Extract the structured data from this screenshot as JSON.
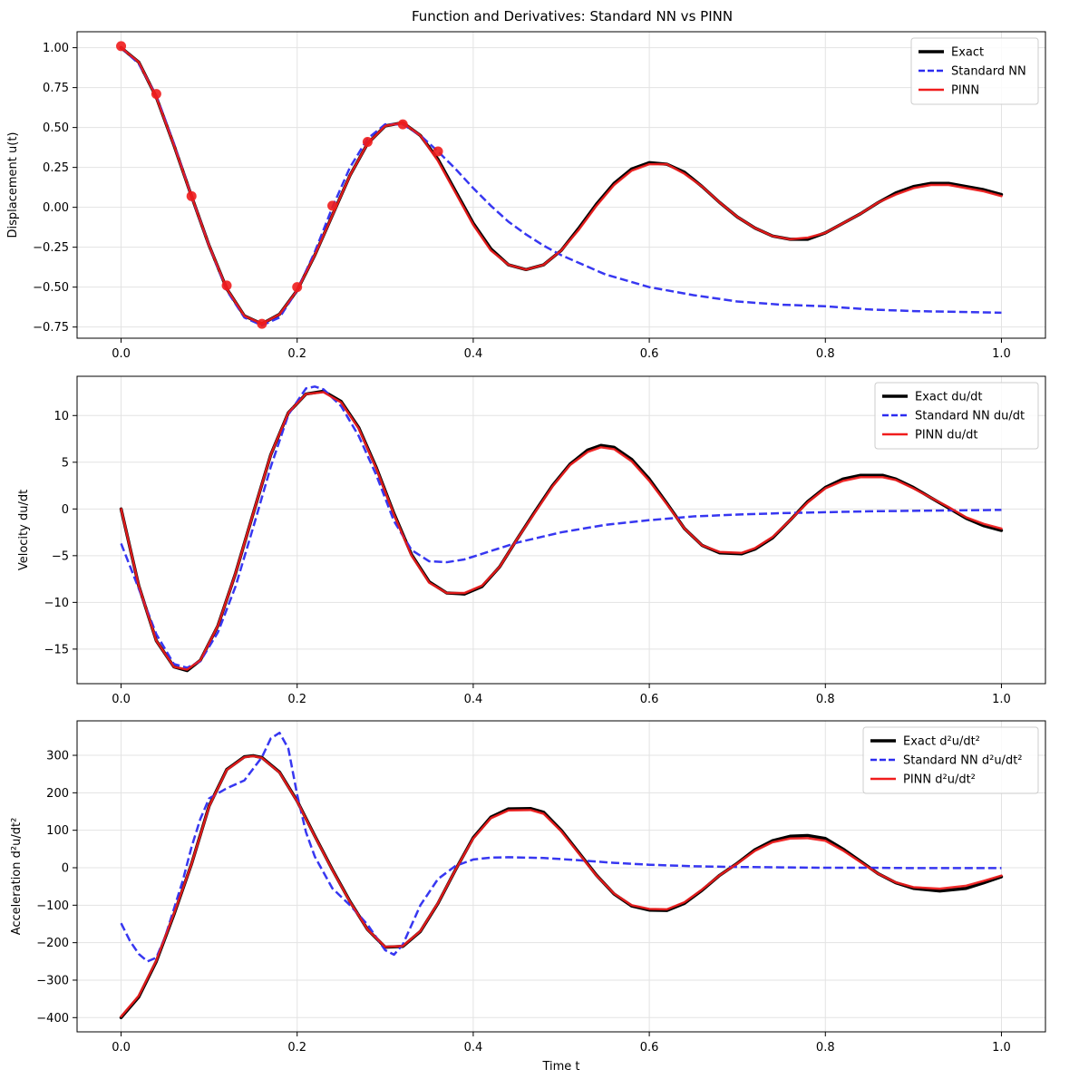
{
  "chart_data": [
    {
      "type": "line",
      "title": "Function and Derivatives: Standard NN vs PINN",
      "xlabel": "",
      "ylabel": "Displacement u(t)",
      "xlim": [
        -0.05,
        1.05
      ],
      "ylim": [
        -0.82,
        1.1
      ],
      "xticks": [
        0.0,
        0.2,
        0.4,
        0.6,
        0.8,
        1.0
      ],
      "xtick_labels": [
        "0.0",
        "0.2",
        "0.4",
        "0.6",
        "0.8",
        "1.0"
      ],
      "yticks": [
        -0.75,
        -0.5,
        -0.25,
        0.0,
        0.25,
        0.5,
        0.75,
        1.0
      ],
      "ytick_labels": [
        "−0.75",
        "−0.50",
        "−0.25",
        "0.00",
        "0.25",
        "0.50",
        "0.75",
        "1.00"
      ],
      "grid": true,
      "legend_position": "top-right",
      "series": [
        {
          "name": "Exact",
          "color": "#000000",
          "style": "solid",
          "width": 3.5,
          "x": [
            0,
            0.02,
            0.04,
            0.06,
            0.08,
            0.1,
            0.12,
            0.14,
            0.16,
            0.18,
            0.2,
            0.22,
            0.24,
            0.26,
            0.28,
            0.3,
            0.32,
            0.34,
            0.36,
            0.38,
            0.4,
            0.42,
            0.44,
            0.46,
            0.48,
            0.5,
            0.52,
            0.54,
            0.56,
            0.58,
            0.6,
            0.62,
            0.64,
            0.66,
            0.68,
            0.7,
            0.72,
            0.74,
            0.76,
            0.78,
            0.8,
            0.82,
            0.84,
            0.86,
            0.88,
            0.9,
            0.92,
            0.94,
            0.96,
            0.98,
            1.0
          ],
          "values": [
            1.0,
            0.91,
            0.69,
            0.39,
            0.07,
            -0.24,
            -0.51,
            -0.68,
            -0.73,
            -0.67,
            -0.52,
            -0.3,
            -0.05,
            0.2,
            0.4,
            0.51,
            0.53,
            0.45,
            0.3,
            0.1,
            -0.1,
            -0.26,
            -0.36,
            -0.39,
            -0.36,
            -0.27,
            -0.13,
            0.02,
            0.15,
            0.24,
            0.28,
            0.27,
            0.22,
            0.13,
            0.03,
            -0.06,
            -0.13,
            -0.18,
            -0.2,
            -0.2,
            -0.16,
            -0.1,
            -0.04,
            0.03,
            0.09,
            0.13,
            0.15,
            0.15,
            0.13,
            0.11,
            0.08
          ]
        },
        {
          "name": "Standard NN",
          "color": "#2c2cf0",
          "style": "dashed",
          "width": 2.5,
          "x": [
            0,
            0.02,
            0.04,
            0.06,
            0.08,
            0.1,
            0.12,
            0.14,
            0.16,
            0.18,
            0.2,
            0.22,
            0.24,
            0.26,
            0.28,
            0.3,
            0.32,
            0.34,
            0.36,
            0.38,
            0.4,
            0.42,
            0.44,
            0.46,
            0.48,
            0.5,
            0.55,
            0.6,
            0.65,
            0.7,
            0.75,
            0.8,
            0.85,
            0.9,
            0.95,
            1.0
          ],
          "values": [
            1.0,
            0.9,
            0.7,
            0.4,
            0.07,
            -0.24,
            -0.52,
            -0.69,
            -0.74,
            -0.69,
            -0.52,
            -0.28,
            0.0,
            0.25,
            0.43,
            0.52,
            0.52,
            0.45,
            0.35,
            0.24,
            0.12,
            0.01,
            -0.09,
            -0.17,
            -0.24,
            -0.3,
            -0.42,
            -0.5,
            -0.55,
            -0.59,
            -0.61,
            -0.62,
            -0.64,
            -0.65,
            -0.655,
            -0.66
          ]
        },
        {
          "name": "PINN",
          "color": "#f01c1c",
          "style": "solid",
          "width": 2.5,
          "x": [
            0,
            0.02,
            0.04,
            0.06,
            0.08,
            0.1,
            0.12,
            0.14,
            0.16,
            0.18,
            0.2,
            0.22,
            0.24,
            0.26,
            0.28,
            0.3,
            0.32,
            0.34,
            0.36,
            0.38,
            0.4,
            0.42,
            0.44,
            0.46,
            0.48,
            0.5,
            0.52,
            0.54,
            0.56,
            0.58,
            0.6,
            0.62,
            0.64,
            0.66,
            0.68,
            0.7,
            0.72,
            0.74,
            0.76,
            0.78,
            0.8,
            0.82,
            0.84,
            0.86,
            0.88,
            0.9,
            0.92,
            0.94,
            0.96,
            0.98,
            1.0
          ],
          "values": [
            1.0,
            0.91,
            0.69,
            0.39,
            0.07,
            -0.24,
            -0.51,
            -0.68,
            -0.73,
            -0.67,
            -0.52,
            -0.3,
            -0.05,
            0.2,
            0.4,
            0.51,
            0.53,
            0.45,
            0.29,
            0.09,
            -0.11,
            -0.27,
            -0.36,
            -0.39,
            -0.36,
            -0.27,
            -0.14,
            0.01,
            0.14,
            0.23,
            0.27,
            0.27,
            0.21,
            0.13,
            0.03,
            -0.06,
            -0.13,
            -0.18,
            -0.2,
            -0.19,
            -0.16,
            -0.1,
            -0.04,
            0.03,
            0.08,
            0.12,
            0.14,
            0.14,
            0.12,
            0.1,
            0.07
          ]
        },
        {
          "name": "",
          "color": "#f01c1c",
          "style": "markers",
          "marker_radius": 5.5,
          "x": [
            0.0,
            0.04,
            0.08,
            0.12,
            0.16,
            0.2,
            0.24,
            0.28,
            0.32,
            0.36
          ],
          "values": [
            1.01,
            0.71,
            0.07,
            -0.49,
            -0.73,
            -0.5,
            0.01,
            0.41,
            0.52,
            0.35
          ]
        }
      ]
    },
    {
      "type": "line",
      "title": "",
      "xlabel": "",
      "ylabel": "Velocity du/dt",
      "xlim": [
        -0.05,
        1.05
      ],
      "ylim": [
        -18.7,
        14.2
      ],
      "xticks": [
        0.0,
        0.2,
        0.4,
        0.6,
        0.8,
        1.0
      ],
      "xtick_labels": [
        "0.0",
        "0.2",
        "0.4",
        "0.6",
        "0.8",
        "1.0"
      ],
      "yticks": [
        -15,
        -10,
        -5,
        0,
        5,
        10
      ],
      "ytick_labels": [
        "−15",
        "−10",
        "−5",
        "0",
        "5",
        "10"
      ],
      "grid": true,
      "legend_position": "top-right",
      "series": [
        {
          "name": "Exact du/dt",
          "color": "#000000",
          "style": "solid",
          "width": 3.5,
          "x": [
            0,
            0.02,
            0.04,
            0.06,
            0.075,
            0.09,
            0.11,
            0.13,
            0.15,
            0.17,
            0.19,
            0.21,
            0.23,
            0.25,
            0.27,
            0.29,
            0.31,
            0.33,
            0.35,
            0.37,
            0.39,
            0.41,
            0.43,
            0.45,
            0.47,
            0.49,
            0.51,
            0.53,
            0.545,
            0.56,
            0.58,
            0.6,
            0.62,
            0.64,
            0.66,
            0.68,
            0.705,
            0.72,
            0.74,
            0.76,
            0.78,
            0.8,
            0.82,
            0.84,
            0.865,
            0.88,
            0.9,
            0.92,
            0.94,
            0.96,
            0.98,
            1.0
          ],
          "values": [
            0.0,
            -8.2,
            -14.1,
            -16.9,
            -17.3,
            -16.2,
            -12.5,
            -6.9,
            -0.5,
            5.8,
            10.3,
            12.3,
            12.6,
            11.5,
            8.7,
            4.4,
            -0.5,
            -4.9,
            -7.8,
            -9.0,
            -9.1,
            -8.3,
            -6.2,
            -3.2,
            -0.3,
            2.5,
            4.8,
            6.3,
            6.8,
            6.6,
            5.3,
            3.2,
            0.6,
            -2.1,
            -3.9,
            -4.7,
            -4.8,
            -4.3,
            -3.1,
            -1.2,
            0.8,
            2.3,
            3.2,
            3.6,
            3.6,
            3.2,
            2.3,
            1.2,
            0.1,
            -1.0,
            -1.8,
            -2.3
          ]
        },
        {
          "name": "Standard NN du/dt",
          "color": "#2c2cf0",
          "style": "dashed",
          "width": 2.5,
          "x": [
            0,
            0.02,
            0.04,
            0.06,
            0.075,
            0.09,
            0.11,
            0.13,
            0.15,
            0.17,
            0.19,
            0.21,
            0.22,
            0.23,
            0.25,
            0.27,
            0.29,
            0.31,
            0.33,
            0.35,
            0.37,
            0.39,
            0.41,
            0.43,
            0.45,
            0.5,
            0.55,
            0.6,
            0.65,
            0.7,
            0.75,
            0.8,
            0.85,
            0.9,
            0.95,
            1.0
          ],
          "values": [
            -3.7,
            -8.5,
            -13.4,
            -16.6,
            -17.0,
            -16.3,
            -13.2,
            -8.3,
            -2.0,
            4.5,
            10.1,
            12.9,
            13.1,
            12.8,
            11.0,
            7.8,
            3.6,
            -1.3,
            -4.4,
            -5.6,
            -5.7,
            -5.4,
            -4.8,
            -4.2,
            -3.6,
            -2.5,
            -1.7,
            -1.2,
            -0.8,
            -0.6,
            -0.45,
            -0.35,
            -0.25,
            -0.2,
            -0.15,
            -0.1
          ]
        },
        {
          "name": "PINN du/dt",
          "color": "#f01c1c",
          "style": "solid",
          "width": 2.5,
          "x": [
            0,
            0.02,
            0.04,
            0.06,
            0.075,
            0.09,
            0.11,
            0.13,
            0.15,
            0.17,
            0.19,
            0.21,
            0.23,
            0.25,
            0.27,
            0.29,
            0.31,
            0.33,
            0.35,
            0.37,
            0.39,
            0.41,
            0.43,
            0.45,
            0.47,
            0.49,
            0.51,
            0.53,
            0.545,
            0.56,
            0.58,
            0.6,
            0.62,
            0.64,
            0.66,
            0.68,
            0.705,
            0.72,
            0.74,
            0.76,
            0.78,
            0.8,
            0.82,
            0.84,
            0.865,
            0.88,
            0.9,
            0.92,
            0.94,
            0.96,
            0.98,
            1.0
          ],
          "values": [
            0.0,
            -8.2,
            -14.1,
            -16.9,
            -17.2,
            -16.2,
            -12.5,
            -6.9,
            -0.5,
            5.8,
            10.3,
            12.3,
            12.5,
            11.4,
            8.6,
            4.3,
            -0.6,
            -5.0,
            -7.9,
            -9.0,
            -9.0,
            -8.2,
            -6.2,
            -3.2,
            -0.4,
            2.4,
            4.7,
            6.1,
            6.6,
            6.4,
            5.1,
            3.0,
            0.5,
            -2.1,
            -3.9,
            -4.6,
            -4.7,
            -4.2,
            -3.0,
            -1.2,
            0.7,
            2.2,
            3.0,
            3.4,
            3.4,
            3.1,
            2.2,
            1.2,
            0.2,
            -0.9,
            -1.6,
            -2.1
          ]
        }
      ]
    },
    {
      "type": "line",
      "title": "",
      "xlabel": "Time t",
      "ylabel": "Acceleration d²u/dt²",
      "xlim": [
        -0.05,
        1.05
      ],
      "ylim": [
        -438,
        392
      ],
      "xticks": [
        0.0,
        0.2,
        0.4,
        0.6,
        0.8,
        1.0
      ],
      "xtick_labels": [
        "0.0",
        "0.2",
        "0.4",
        "0.6",
        "0.8",
        "1.0"
      ],
      "yticks": [
        -400,
        -300,
        -200,
        -100,
        0,
        100,
        200,
        300
      ],
      "ytick_labels": [
        "−400",
        "−300",
        "−200",
        "−100",
        "0",
        "100",
        "200",
        "300"
      ],
      "grid": true,
      "legend_position": "top-right",
      "series": [
        {
          "name": "Exact d²u/dt²",
          "color": "#000000",
          "style": "solid",
          "width": 3.5,
          "x": [
            0,
            0.02,
            0.04,
            0.06,
            0.08,
            0.1,
            0.12,
            0.14,
            0.15,
            0.16,
            0.18,
            0.2,
            0.22,
            0.24,
            0.26,
            0.28,
            0.3,
            0.32,
            0.34,
            0.36,
            0.38,
            0.4,
            0.42,
            0.44,
            0.465,
            0.48,
            0.5,
            0.52,
            0.54,
            0.56,
            0.58,
            0.6,
            0.62,
            0.64,
            0.66,
            0.68,
            0.7,
            0.72,
            0.74,
            0.76,
            0.78,
            0.8,
            0.82,
            0.84,
            0.86,
            0.88,
            0.9,
            0.93,
            0.96,
            0.98,
            1.0
          ],
          "values": [
            -400,
            -345,
            -250,
            -125,
            10,
            165,
            262,
            296,
            299,
            294,
            255,
            178,
            85,
            -5,
            -90,
            -165,
            -212,
            -210,
            -170,
            -95,
            -5,
            80,
            135,
            157,
            158,
            148,
            100,
            40,
            -20,
            -70,
            -102,
            -113,
            -114,
            -95,
            -60,
            -20,
            12,
            48,
            72,
            84,
            86,
            78,
            50,
            17,
            -16,
            -40,
            -55,
            -62,
            -55,
            -40,
            -24
          ]
        },
        {
          "name": "Standard NN d²u/dt²",
          "color": "#2c2cf0",
          "style": "dashed",
          "width": 2.5,
          "x": [
            0,
            0.01,
            0.02,
            0.03,
            0.04,
            0.05,
            0.06,
            0.07,
            0.08,
            0.09,
            0.1,
            0.12,
            0.14,
            0.16,
            0.17,
            0.18,
            0.19,
            0.2,
            0.21,
            0.22,
            0.24,
            0.26,
            0.28,
            0.3,
            0.31,
            0.32,
            0.34,
            0.36,
            0.38,
            0.4,
            0.42,
            0.44,
            0.48,
            0.52,
            0.56,
            0.6,
            0.65,
            0.7,
            0.75,
            0.8,
            0.85,
            0.9,
            0.95,
            1.0
          ],
          "values": [
            -148,
            -195,
            -230,
            -250,
            -240,
            -185,
            -110,
            -35,
            55,
            130,
            185,
            212,
            233,
            295,
            345,
            360,
            318,
            195,
            95,
            30,
            -55,
            -100,
            -152,
            -220,
            -232,
            -205,
            -100,
            -30,
            5,
            22,
            27,
            28,
            26,
            20,
            13,
            8,
            4,
            2,
            1,
            0,
            0,
            -1,
            -1,
            -1
          ]
        },
        {
          "name": "PINN d²u/dt²",
          "color": "#f01c1c",
          "style": "solid",
          "width": 2.5,
          "x": [
            0,
            0.02,
            0.04,
            0.06,
            0.08,
            0.1,
            0.12,
            0.14,
            0.15,
            0.16,
            0.18,
            0.2,
            0.22,
            0.24,
            0.26,
            0.28,
            0.3,
            0.32,
            0.34,
            0.36,
            0.38,
            0.4,
            0.42,
            0.44,
            0.465,
            0.48,
            0.5,
            0.52,
            0.54,
            0.56,
            0.58,
            0.6,
            0.62,
            0.64,
            0.66,
            0.68,
            0.7,
            0.72,
            0.74,
            0.76,
            0.78,
            0.8,
            0.82,
            0.84,
            0.86,
            0.88,
            0.9,
            0.93,
            0.96,
            0.98,
            1.0
          ],
          "values": [
            -397,
            -342,
            -248,
            -123,
            10,
            164,
            261,
            295,
            298,
            293,
            254,
            177,
            84,
            -6,
            -91,
            -165,
            -211,
            -209,
            -169,
            -94,
            -5,
            78,
            132,
            153,
            154,
            144,
            97,
            38,
            -21,
            -69,
            -100,
            -110,
            -111,
            -92,
            -58,
            -20,
            11,
            45,
            68,
            78,
            79,
            72,
            46,
            15,
            -16,
            -39,
            -52,
            -56,
            -48,
            -35,
            -21
          ]
        }
      ]
    }
  ]
}
